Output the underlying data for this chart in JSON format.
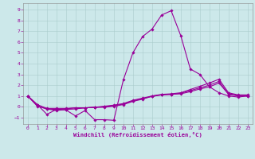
{
  "xlabel": "Windchill (Refroidissement éolien,°C)",
  "bg_color": "#cce8ea",
  "line_color": "#990099",
  "grid_color": "#aacccc",
  "xlim": [
    -0.5,
    23.5
  ],
  "ylim": [
    -1.6,
    9.6
  ],
  "yticks": [
    -1,
    0,
    1,
    2,
    3,
    4,
    5,
    6,
    7,
    8,
    9
  ],
  "xticks": [
    0,
    1,
    2,
    3,
    4,
    5,
    6,
    7,
    8,
    9,
    10,
    11,
    12,
    13,
    14,
    15,
    16,
    17,
    18,
    19,
    20,
    21,
    22,
    23
  ],
  "line1_x": [
    0,
    1,
    2,
    3,
    4,
    5,
    6,
    7,
    8,
    9,
    10,
    11,
    12,
    13,
    14,
    15,
    16,
    17,
    18,
    19,
    20,
    21,
    22,
    23
  ],
  "line1_y": [
    1.0,
    0.2,
    -0.7,
    -0.25,
    -0.3,
    -0.85,
    -0.35,
    -1.2,
    -1.2,
    -1.25,
    2.5,
    5.0,
    6.5,
    7.2,
    8.5,
    8.9,
    6.6,
    3.5,
    3.0,
    1.85,
    1.3,
    1.0,
    0.9,
    1.0
  ],
  "line2_x": [
    0,
    1,
    2,
    3,
    4,
    5,
    6,
    7,
    8,
    9,
    10,
    11,
    12,
    13,
    14,
    15,
    16,
    17,
    18,
    19,
    20,
    21,
    22,
    23
  ],
  "line2_y": [
    1.0,
    0.2,
    -0.15,
    -0.15,
    -0.15,
    -0.1,
    -0.1,
    -0.05,
    -0.05,
    0.05,
    0.2,
    0.5,
    0.7,
    1.0,
    1.15,
    1.2,
    1.3,
    1.6,
    1.9,
    2.2,
    2.55,
    1.3,
    1.1,
    1.1
  ],
  "line3_x": [
    0,
    1,
    2,
    3,
    4,
    5,
    6,
    7,
    8,
    9,
    10,
    11,
    12,
    13,
    14,
    15,
    16,
    17,
    18,
    19,
    20,
    21,
    22,
    23
  ],
  "line3_y": [
    1.0,
    0.1,
    -0.2,
    -0.25,
    -0.2,
    -0.1,
    -0.1,
    -0.05,
    0.0,
    0.1,
    0.25,
    0.55,
    0.75,
    0.95,
    1.1,
    1.15,
    1.25,
    1.5,
    1.75,
    2.0,
    2.35,
    1.2,
    1.05,
    1.05
  ],
  "line4_x": [
    0,
    1,
    2,
    3,
    4,
    5,
    6,
    7,
    8,
    9,
    10,
    11,
    12,
    13,
    14,
    15,
    16,
    17,
    18,
    19,
    20,
    21,
    22,
    23
  ],
  "line4_y": [
    1.0,
    0.05,
    -0.2,
    -0.35,
    -0.25,
    -0.2,
    -0.1,
    -0.05,
    0.05,
    0.15,
    0.3,
    0.6,
    0.8,
    1.0,
    1.1,
    1.15,
    1.2,
    1.4,
    1.65,
    1.85,
    2.2,
    1.15,
    1.0,
    1.0
  ]
}
